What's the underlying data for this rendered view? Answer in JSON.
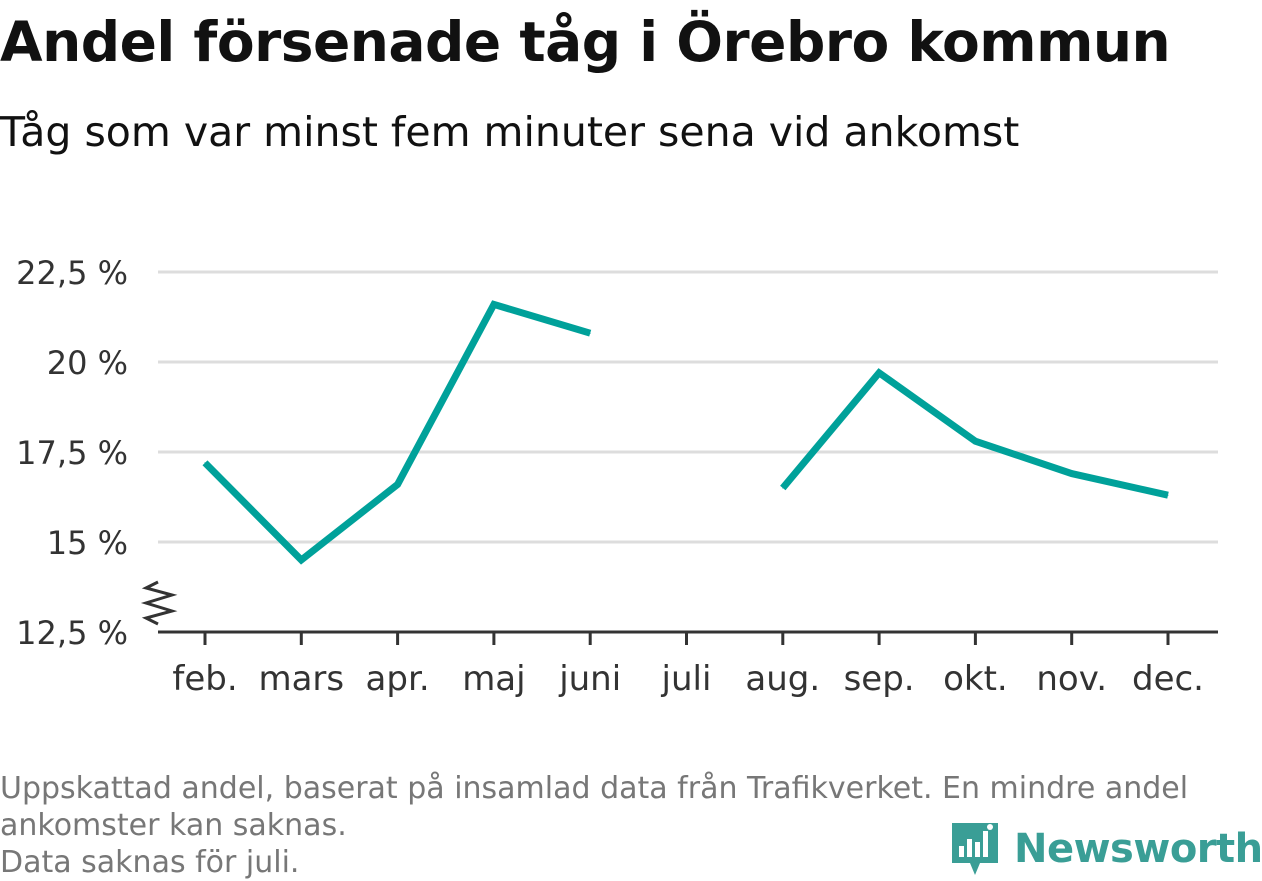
{
  "title": "Andel försenade tåg i Örebro kommun",
  "subtitle": "Tåg som var minst fem minuter sena vid ankomst",
  "footnote": {
    "line1": "Uppskattad andel, baserat på insamlad data från Trafikverket. En mindre andel",
    "line2": "ankomster kan saknas.",
    "line3": "Data saknas för juli."
  },
  "brand": {
    "name": "Newsworthy",
    "icon": "newsworthy-logo-icon",
    "color": "#3a9e96"
  },
  "chart_data": {
    "type": "line",
    "title": "Andel försenade tåg i Örebro kommun",
    "subtitle": "Tåg som var minst fem minuter sena vid ankomst",
    "categories": [
      "feb.",
      "mars",
      "apr.",
      "maj",
      "juni",
      "juli",
      "aug.",
      "sep.",
      "okt.",
      "nov.",
      "dec."
    ],
    "series": [
      {
        "values": [
          17.2,
          14.5,
          16.6,
          21.6,
          20.8,
          null,
          16.5,
          19.7,
          17.8,
          16.9,
          16.3
        ],
        "color": "#00a19a"
      }
    ],
    "y_ticks": [
      12.5,
      15,
      17.5,
      20,
      22.5
    ],
    "y_tick_labels": [
      "12,5 %",
      "15 %",
      "17,5 %",
      "20 %",
      "22,5 %"
    ],
    "ylim": [
      12.5,
      22.5
    ],
    "y_axis_break": true,
    "grid": true,
    "gap": "juli",
    "gridline_color": "#dddddd",
    "axis_color": "#333333"
  }
}
